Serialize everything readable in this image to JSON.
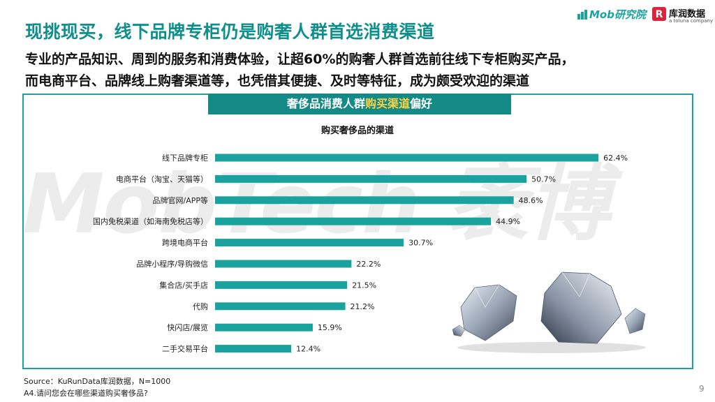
{
  "header": {
    "title": "现挑现买，线下品牌专柜仍是购奢人群首选消费渠道",
    "subtitle_line1": "专业的产品知识、周到的服务和消费体验，让超60%的购奢人群首选前往线下专柜购买产品，",
    "subtitle_line2": "而电商平台、品牌线上购奢渠道等，也凭借其便捷、及时等特征，成为颇受欢迎的渠道"
  },
  "logos": {
    "mob": "Mob研究院",
    "kurun": "库润数据",
    "kurun_tagline": "a toluna company"
  },
  "watermark": "MobTech 袤博",
  "banner": {
    "part1": "奢侈品消费人群",
    "highlight": "购买渠道",
    "part2": "偏好"
  },
  "chart_data": {
    "type": "bar",
    "orientation": "horizontal",
    "title": "购买奢侈品的渠道",
    "categories": [
      "线下品牌专柜",
      "电商平台（淘宝、天猫等）",
      "品牌官网/APP等",
      "国内免税渠道（如海南免税店等）",
      "跨境电商平台",
      "品牌小程序/导购微信",
      "集合店/买手店",
      "代购",
      "快闪店/展览",
      "二手交易平台"
    ],
    "values": [
      62.4,
      50.7,
      48.6,
      44.9,
      30.7,
      22.2,
      21.5,
      21.2,
      15.9,
      12.4
    ],
    "value_labels": [
      "62.4%",
      "50.7%",
      "48.6%",
      "44.9%",
      "30.7%",
      "22.2%",
      "21.5%",
      "21.2%",
      "15.9%",
      "12.4%"
    ],
    "xlim": [
      0,
      100
    ],
    "grid": false,
    "bar_color": "#1aa39e"
  },
  "footer": {
    "source": "Source：KuRunData库润数据，N=1000",
    "question": "A4.请问您会在哪些渠道购买奢侈品?",
    "page": "9"
  }
}
